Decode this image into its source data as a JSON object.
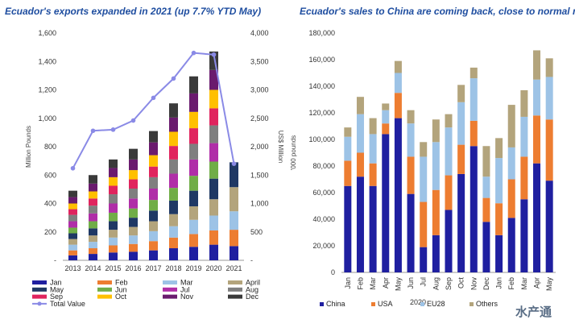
{
  "chart_data": [
    {
      "type": "bar",
      "stacked": true,
      "title": "Ecuador's exports  expanded in 2021 (up 7.7% YTD May)",
      "ylabel": "Million Pounds",
      "y2label": "US$ Million",
      "ylim": [
        0,
        1600
      ],
      "y2lim": [
        0,
        4000
      ],
      "yticks": [
        "-",
        "200",
        "400",
        "600",
        "800",
        "1,000",
        "1,200",
        "1,400",
        "1,600"
      ],
      "y2ticks": [
        "-",
        "500",
        "1,000",
        "1,500",
        "2,000",
        "2,500",
        "3,000",
        "3,500",
        "4,000"
      ],
      "categories": [
        "2013",
        "2014",
        "2015",
        "2016",
        "2017",
        "2018",
        "2019",
        "2020",
        "2021"
      ],
      "series": [
        {
          "name": "Jan",
          "color": "#1f1fa0",
          "values": [
            35,
            45,
            55,
            60,
            70,
            85,
            95,
            110,
            100
          ]
        },
        {
          "name": "Feb",
          "color": "#ed7d31",
          "values": [
            35,
            40,
            50,
            55,
            65,
            75,
            90,
            100,
            115
          ]
        },
        {
          "name": "Mar",
          "color": "#9dc3e6",
          "values": [
            40,
            45,
            55,
            60,
            70,
            80,
            100,
            105,
            130
          ]
        },
        {
          "name": "April",
          "color": "#b3a47c",
          "values": [
            40,
            45,
            55,
            60,
            70,
            85,
            95,
            115,
            170
          ]
        },
        {
          "name": "May",
          "color": "#1f3864",
          "values": [
            40,
            50,
            60,
            65,
            75,
            95,
            110,
            145,
            175
          ]
        },
        {
          "name": "Jun",
          "color": "#70ad47",
          "values": [
            40,
            50,
            60,
            65,
            75,
            90,
            105,
            120,
            0
          ]
        },
        {
          "name": "Jul",
          "color": "#b02ea8",
          "values": [
            45,
            55,
            65,
            70,
            80,
            100,
            115,
            130,
            0
          ]
        },
        {
          "name": "Aug",
          "color": "#7f7f7f",
          "values": [
            45,
            55,
            65,
            70,
            80,
            100,
            110,
            125,
            0
          ]
        },
        {
          "name": "Sep",
          "color": "#e0245e",
          "values": [
            40,
            50,
            60,
            65,
            75,
            95,
            110,
            120,
            0
          ]
        },
        {
          "name": "Oct",
          "color": "#ffc000",
          "values": [
            40,
            50,
            60,
            65,
            80,
            100,
            115,
            130,
            0
          ]
        },
        {
          "name": "Nov",
          "color": "#6a1b6e",
          "values": [
            45,
            55,
            65,
            75,
            90,
            100,
            130,
            140,
            0
          ]
        },
        {
          "name": "Dec",
          "color": "#3a3a3a",
          "values": [
            45,
            60,
            60,
            75,
            80,
            100,
            120,
            130,
            0
          ]
        }
      ],
      "line_series": {
        "name": "Total Value",
        "color": "#8a8ae6",
        "axis": "secondary",
        "values": [
          1620,
          2280,
          2300,
          2460,
          2860,
          3200,
          3650,
          3620,
          1700
        ]
      }
    },
    {
      "type": "bar",
      "stacked": true,
      "title": "Ecuador's sales to China are coming back, close to normal now",
      "ylabel": "'000 pounds",
      "ylim": [
        0,
        180000
      ],
      "yticks": [
        "0",
        "20,000",
        "40,000",
        "60,000",
        "80,000",
        "100,000",
        "120,000",
        "140,000",
        "160,000",
        "180,000"
      ],
      "categories": [
        "Jan",
        "Feb",
        "Mar",
        "Apr",
        "May",
        "Jun",
        "Jul",
        "Aug",
        "Sep",
        "Oct",
        "Nov",
        "Dec",
        "Jan",
        "Feb",
        "Mar",
        "Apr",
        "May"
      ],
      "year_label": "2020",
      "series": [
        {
          "name": "China",
          "color": "#1f1fa0",
          "values": [
            65000,
            72000,
            65000,
            104000,
            116000,
            59000,
            19000,
            28000,
            47000,
            74000,
            95000,
            38000,
            28000,
            41000,
            55000,
            82000,
            69000
          ]
        },
        {
          "name": "USA",
          "color": "#ed7d31",
          "values": [
            19000,
            18000,
            17000,
            8000,
            19000,
            28000,
            34000,
            34000,
            26000,
            22000,
            19000,
            18000,
            24000,
            29000,
            32000,
            36000,
            46000
          ]
        },
        {
          "name": "EU28",
          "color": "#9dc3e6",
          "values": [
            18000,
            29000,
            22000,
            10000,
            15000,
            25000,
            34000,
            36000,
            36000,
            32000,
            32000,
            16000,
            34000,
            24000,
            30000,
            27000,
            32000
          ]
        },
        {
          "name": "Others",
          "color": "#b3a47c",
          "values": [
            7000,
            13000,
            12000,
            5000,
            9000,
            10000,
            11000,
            17000,
            10000,
            13000,
            8000,
            23000,
            15000,
            32000,
            20000,
            22000,
            14000
          ]
        }
      ]
    }
  ],
  "watermark": "水产通"
}
